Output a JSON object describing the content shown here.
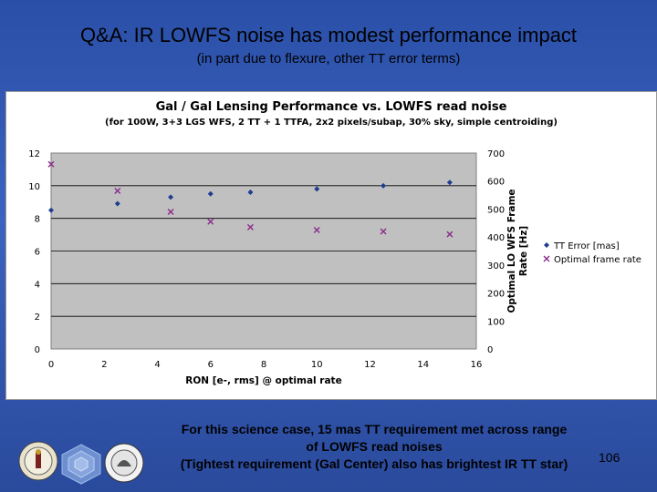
{
  "slide": {
    "title": "Q&A: IR LOWFS noise has modest performance impact",
    "subtitle": "(in part due to flexure, other TT error terms)",
    "caption_lines": [
      "For this science case, 15 mas TT requirement met across range",
      "of LOWFS read noises",
      "(Tightest requirement (Gal Center) also has brightest IR TT star)"
    ],
    "page_number": "106",
    "logos": [
      "university-seal-logo",
      "keck-hexagon-logo",
      "caltech-seal-logo"
    ],
    "colors": {
      "background": "#3558b0",
      "plot_area": "#c0c0c0",
      "series1": "#1f3d8f",
      "series2": "#8b2a8b"
    }
  },
  "chart_data": {
    "type": "scatter",
    "title": "Gal / Gal Lensing Performance vs. LOWFS read noise",
    "subtitle": "(for 100W, 3+3 LGS WFS, 2 TT + 1 TTFA, 2x2 pixels/subap, 30% sky, simple centroiding)",
    "xlabel": "RON [e-, rms] @ optimal rate",
    "ylabel": "",
    "y2label_lines": [
      "Optimal LO WFS Frame",
      "Rate [Hz]"
    ],
    "xlim": [
      0,
      16
    ],
    "ylim": [
      0,
      12
    ],
    "y2lim": [
      0,
      700
    ],
    "x_ticks": [
      "0",
      "2",
      "4",
      "6",
      "8",
      "10",
      "12",
      "14",
      "16"
    ],
    "y_ticks": [
      "0",
      "2",
      "4",
      "6",
      "8",
      "10",
      "12"
    ],
    "y2_ticks": [
      "0",
      "100",
      "200",
      "300",
      "400",
      "500",
      "600",
      "700"
    ],
    "grid": "horizontal",
    "legend": "right",
    "series": [
      {
        "name": "TT Error [mas]",
        "axis": "left",
        "marker": "diamond",
        "x": [
          0,
          2.5,
          4.5,
          6,
          7.5,
          10,
          12.5,
          15
        ],
        "y": [
          8.5,
          8.9,
          9.3,
          9.5,
          9.6,
          9.8,
          10.0,
          10.2
        ]
      },
      {
        "name": "Optimal frame rate",
        "axis": "right",
        "marker": "x",
        "x": [
          0,
          2.5,
          4.5,
          6,
          7.5,
          10,
          12.5,
          15
        ],
        "y": [
          660,
          565,
          490,
          455,
          435,
          425,
          420,
          410
        ]
      }
    ]
  }
}
